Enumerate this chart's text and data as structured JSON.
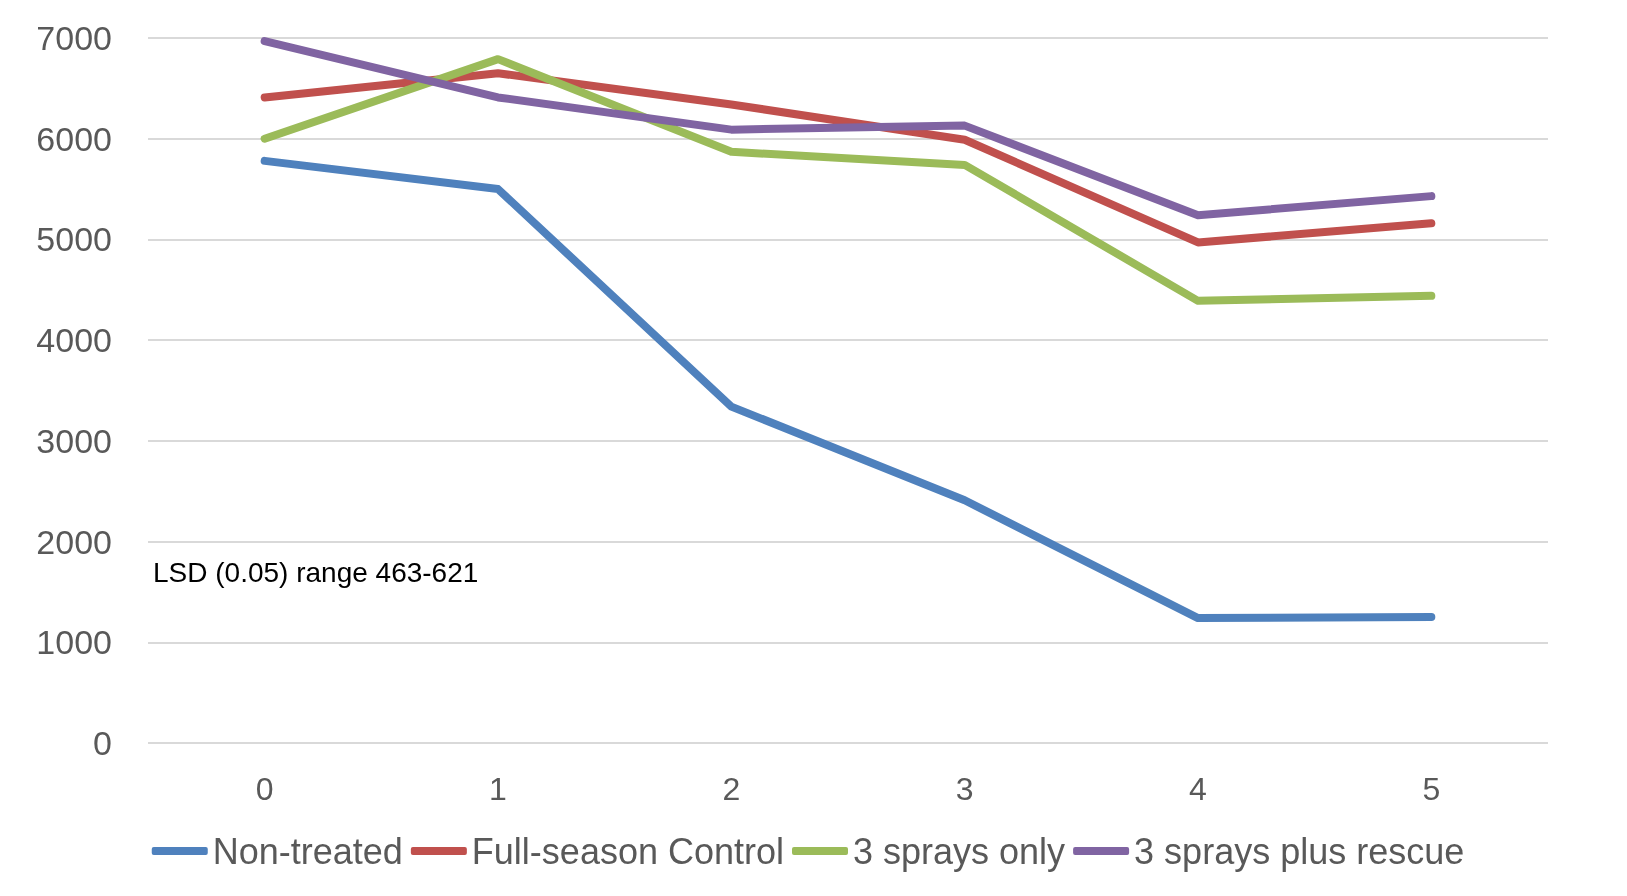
{
  "chart_data": {
    "type": "line",
    "categories": [
      "0",
      "1",
      "2",
      "3",
      "4",
      "5"
    ],
    "series": [
      {
        "name": "Non-treated",
        "color": "#4f81bd",
        "values": [
          5780,
          5500,
          3340,
          2410,
          1240,
          1250
        ]
      },
      {
        "name": "Full-season Control",
        "color": "#c0504d",
        "values": [
          6410,
          6650,
          6340,
          5990,
          4970,
          5160
        ]
      },
      {
        "name": "3 sprays only",
        "color": "#9bbb59",
        "values": [
          6000,
          6790,
          5870,
          5740,
          4390,
          4440
        ]
      },
      {
        "name": "3 sprays plus rescue",
        "color": "#8064a2",
        "values": [
          6970,
          6410,
          6090,
          6130,
          5240,
          5430
        ]
      }
    ],
    "ylim": [
      0,
      7000
    ],
    "yticks": [
      0,
      1000,
      2000,
      3000,
      4000,
      5000,
      6000,
      7000
    ],
    "grid": "y",
    "legend": "bottom",
    "marker": "none",
    "line_style": "solid",
    "annotations": [
      "LSD (0.05) range 463-621"
    ]
  }
}
